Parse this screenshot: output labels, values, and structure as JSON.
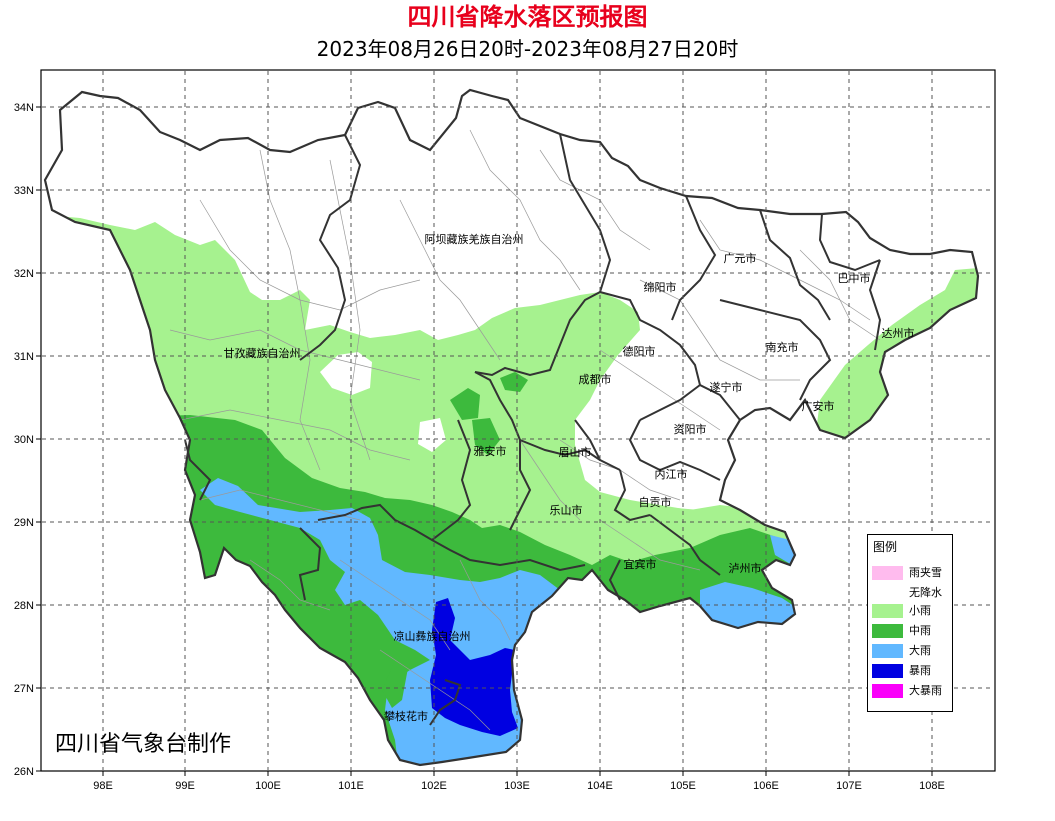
{
  "title": "四川省降水落区预报图",
  "subtitle": "2023年08月26日20时-2023年08月27日20时",
  "credit": "四川省气象台制作",
  "axes": {
    "y_ticks": [
      "34N",
      "33N",
      "32N",
      "31N",
      "30N",
      "29N",
      "28N",
      "27N",
      "26N"
    ],
    "x_ticks": [
      "98E",
      "99E",
      "100E",
      "101E",
      "102E",
      "103E",
      "104E",
      "105E",
      "106E",
      "107E",
      "108E"
    ]
  },
  "regions": [
    "阿坝藏族羌族自治州",
    "广元市",
    "巴中市",
    "绵阳市",
    "达州市",
    "甘孜藏族自治州",
    "德阳市",
    "南充市",
    "成都市",
    "遂宁市",
    "广安市",
    "雅安市",
    "资阳市",
    "眉山市",
    "内江市",
    "乐山市",
    "自贡市",
    "宜宾市",
    "泸州市",
    "凉山彝族自治州",
    "攀枝花市"
  ],
  "legend": {
    "title": "图例",
    "items": [
      {
        "label": "雨夹雪",
        "color": "#ffbbee"
      },
      {
        "label": "无降水",
        "color": "#ffffff"
      },
      {
        "label": "小雨",
        "color": "#a6f28f"
      },
      {
        "label": "中雨",
        "color": "#3dba3d"
      },
      {
        "label": "大雨",
        "color": "#61b8ff"
      },
      {
        "label": "暴雨",
        "color": "#0000e1"
      },
      {
        "label": "大暴雨",
        "color": "#fa00fa"
      }
    ]
  }
}
